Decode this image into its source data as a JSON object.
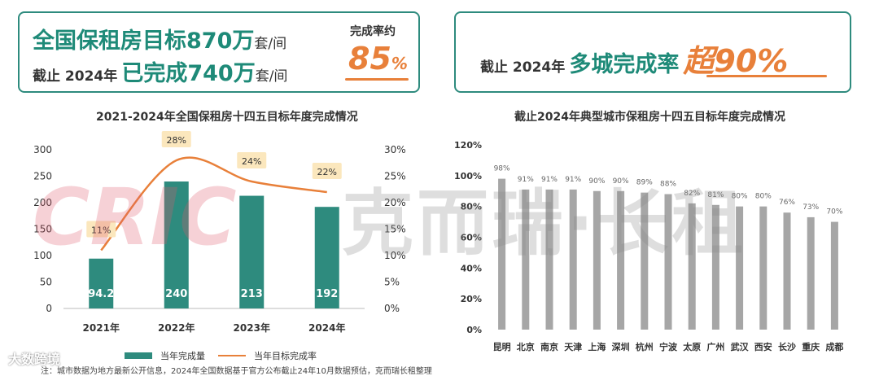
{
  "left_box": {
    "line1_pre": "全国保租房目标",
    "line1_num": "870万",
    "line1_unit": "套/间",
    "line2_pre": "截止 2024年",
    "line2_mid": "已完成",
    "line2_num": "740万",
    "line2_unit": "套/间",
    "rate_label": "完成率约",
    "rate_value": "85",
    "rate_pct": "%"
  },
  "right_box": {
    "pre": "截止 2024年",
    "mid": "多城完成率",
    "big": "超90%"
  },
  "colors": {
    "teal": "#2e8b7e",
    "orange": "#e8803a",
    "gray_bar": "#a6a6a6",
    "label_bg": "#fbe7bd"
  },
  "chart_data": [
    {
      "type": "bar",
      "title": "2021-2024年全国保租房十四五目标年度完成情况",
      "categories": [
        "2021年",
        "2022年",
        "2023年",
        "2024年"
      ],
      "series": [
        {
          "name": "当年完成量",
          "type": "bar",
          "axis": "left",
          "values": [
            94.2,
            240,
            213,
            192
          ],
          "labels": [
            "94.2",
            "240",
            "213",
            "192"
          ]
        },
        {
          "name": "当年目标完成率",
          "type": "line",
          "axis": "right",
          "values": [
            11,
            28,
            24,
            22
          ],
          "labels": [
            "11%",
            "28%",
            "24%",
            "22%"
          ]
        }
      ],
      "y_left": {
        "range": [
          0,
          300
        ],
        "ticks": [
          "0",
          "50",
          "100",
          "150",
          "200",
          "250",
          "300"
        ]
      },
      "y_right": {
        "range": [
          0,
          30
        ],
        "ticks": [
          "0%",
          "5%",
          "10%",
          "15%",
          "20%",
          "25%",
          "30%"
        ]
      }
    },
    {
      "type": "bar",
      "title": "截止2024年典型城市保租房十四五目标年度完成情况",
      "categories": [
        "昆明",
        "北京",
        "南京",
        "天津",
        "上海",
        "深圳",
        "杭州",
        "宁波",
        "太原",
        "广州",
        "武汉",
        "西安",
        "长沙",
        "重庆",
        "成都"
      ],
      "values": [
        98,
        91,
        91,
        91,
        90,
        90,
        89,
        88,
        82,
        81,
        80,
        80,
        76,
        73,
        70
      ],
      "labels": [
        "98%",
        "91%",
        "91%",
        "91%",
        "90%",
        "90%",
        "89%",
        "88%",
        "82%",
        "81%",
        "80%",
        "80%",
        "76%",
        "73%",
        "70%"
      ],
      "ylim": [
        0,
        120
      ],
      "ticks": [
        "0%",
        "20%",
        "40%",
        "60%",
        "80%",
        "100%",
        "120%"
      ]
    }
  ],
  "legend": {
    "bar": "当年完成量",
    "line": "当年目标完成率"
  },
  "watermark": {
    "logo_text": "CRIC",
    "company": "克而瑞·长租"
  },
  "brand": "大数跨境",
  "note": "注：城市数据为地方最新公开信息，2024年全国数据基于官方公布截止24年10月数据预估，克而瑞长租整理"
}
